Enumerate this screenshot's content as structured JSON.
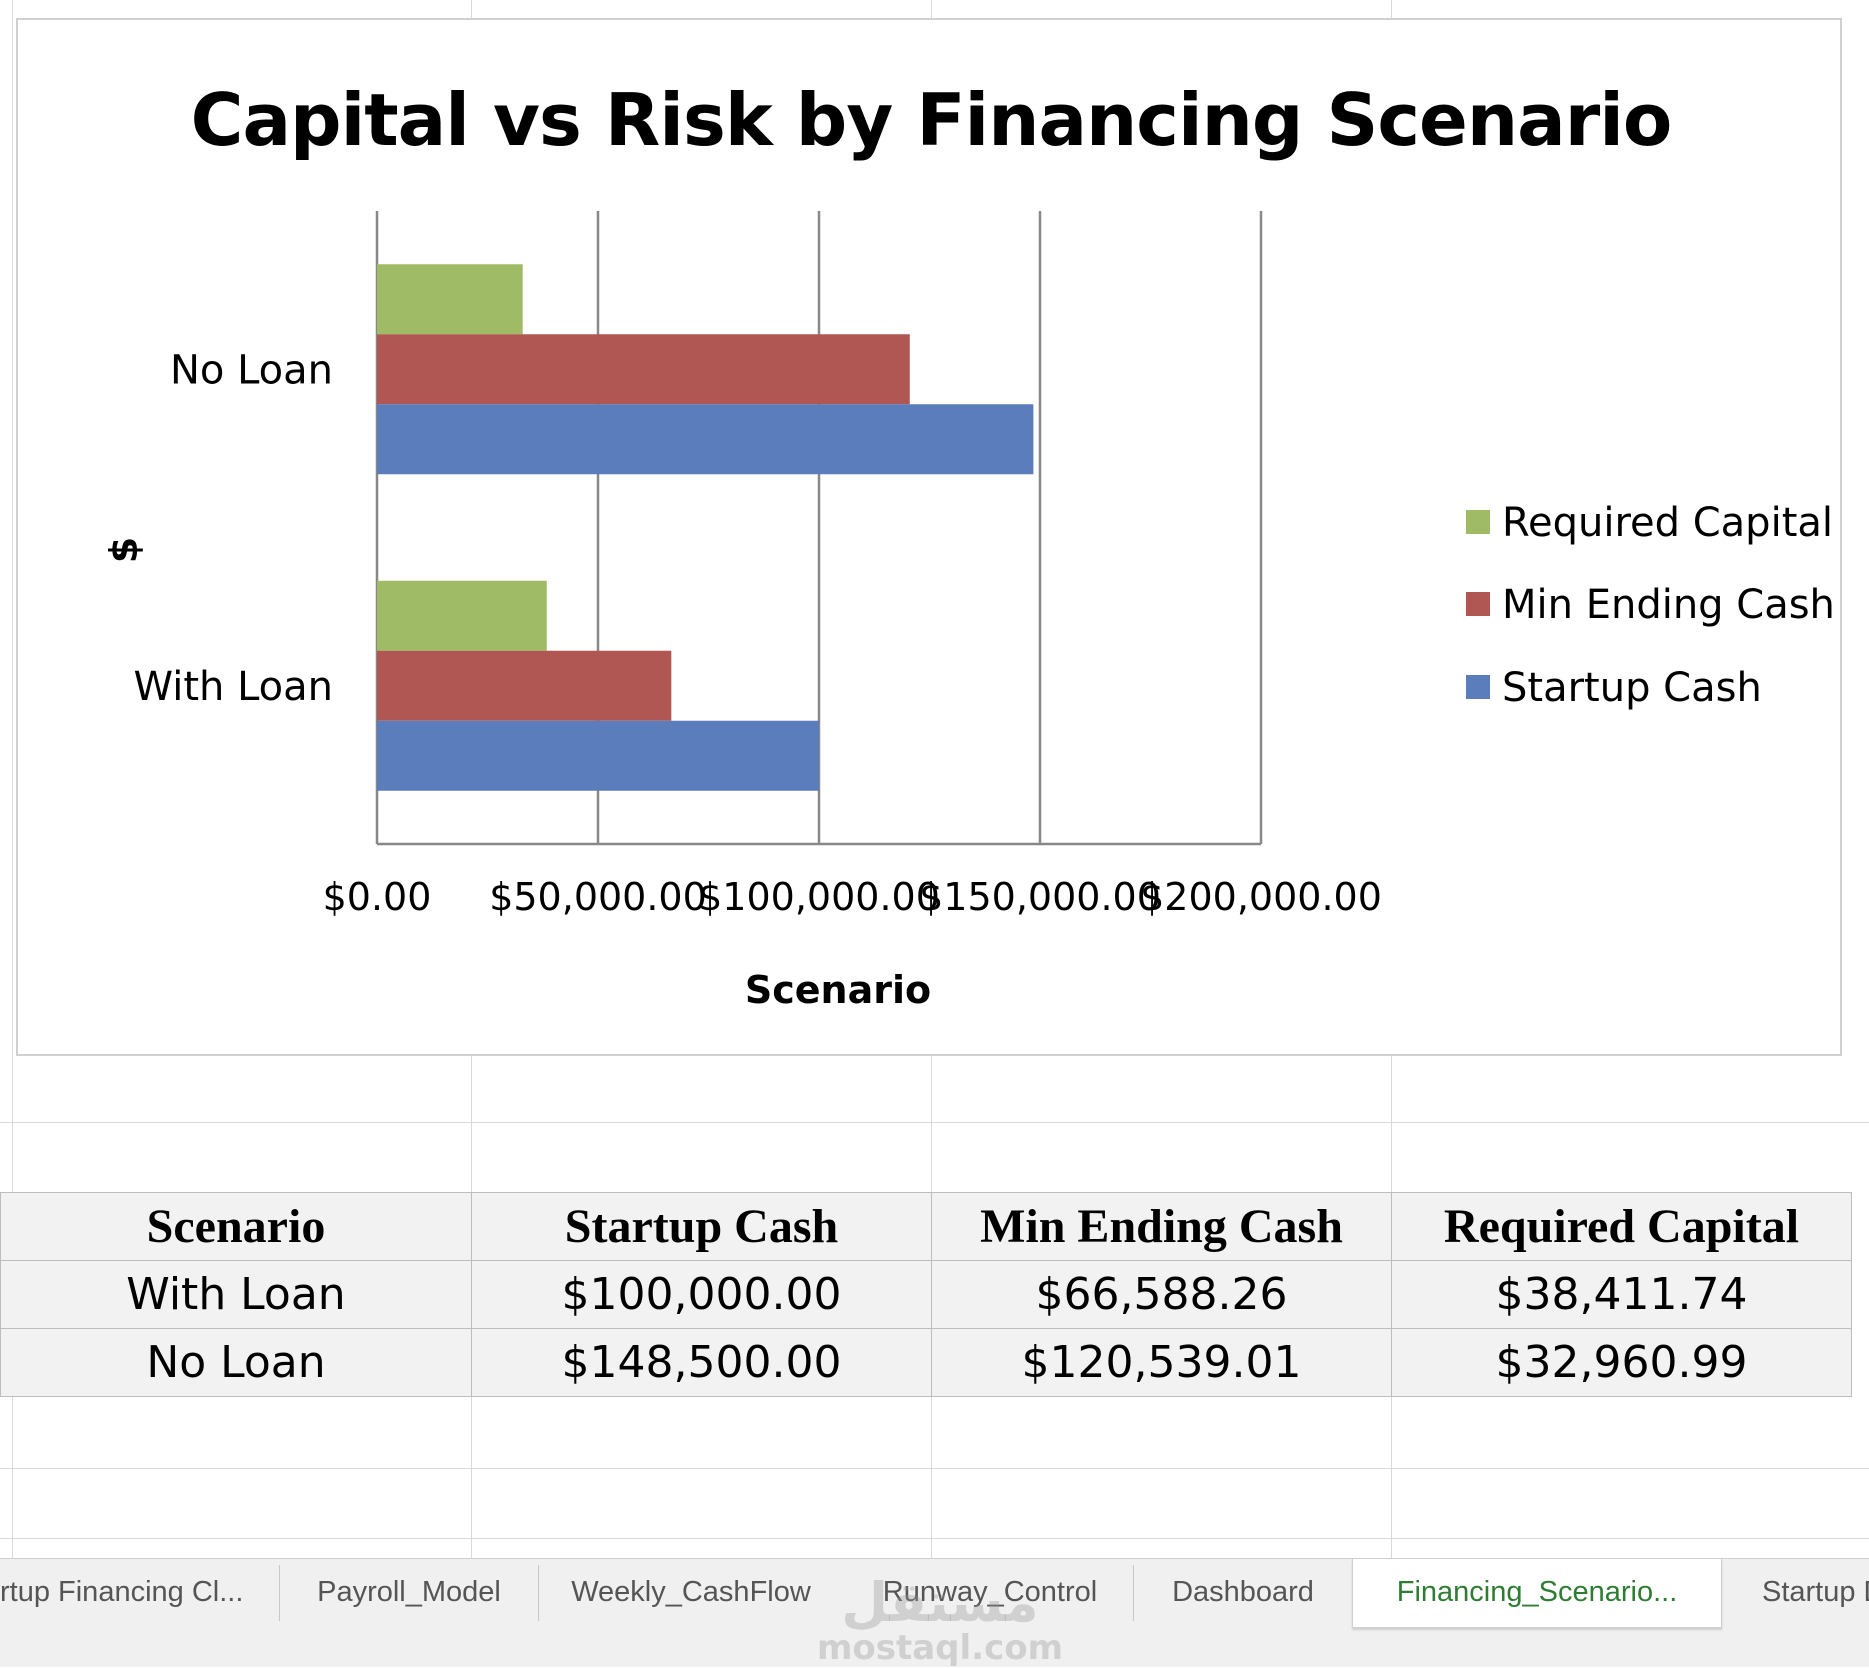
{
  "chart_data": {
    "type": "bar",
    "orientation": "horizontal",
    "title": "Capital vs Risk by Financing Scenario",
    "xlabel": "Scenario",
    "ylabel": "$",
    "categories": [
      "With Loan",
      "No Loan"
    ],
    "series": [
      {
        "name": "Startup Cash",
        "color": "#5b7dbb",
        "values": [
          100000.0,
          148500.0
        ]
      },
      {
        "name": "Min Ending Cash",
        "color": "#b05753",
        "values": [
          66588.26,
          120539.01
        ]
      },
      {
        "name": "Required Capital",
        "color": "#9fbb66",
        "values": [
          38411.74,
          32960.99
        ]
      }
    ],
    "legend_order": [
      "Required Capital",
      "Min Ending Cash",
      "Startup Cash"
    ],
    "xlim": [
      0,
      200000
    ],
    "x_ticks": [
      0,
      50000,
      100000,
      150000,
      200000
    ],
    "x_tick_labels": [
      "$0.00",
      "$50,000.00",
      "$100,000.00",
      "$150,000.00",
      "$200,000.00"
    ],
    "grid": true,
    "legend_position": "right"
  },
  "table": {
    "headers": [
      "Scenario",
      "Startup Cash",
      "Min Ending Cash",
      "Required Capital"
    ],
    "rows": [
      [
        "With Loan",
        "$100,000.00",
        "$66,588.26",
        "$38,411.74"
      ],
      [
        "No Loan",
        "$148,500.00",
        "$120,539.01",
        "$32,960.99"
      ]
    ]
  },
  "sheet_tabs": [
    {
      "label": "rtup Financing Cl...",
      "active": false
    },
    {
      "label": "Payroll_Model",
      "active": false
    },
    {
      "label": "Weekly_CashFlow",
      "active": false
    },
    {
      "label": "Runway_Control",
      "active": false
    },
    {
      "label": "Dashboard",
      "active": false
    },
    {
      "label": "Financing_Scenario...",
      "active": true
    },
    {
      "label": "Startup D",
      "active": false
    }
  ],
  "watermark": {
    "line1": "مستقل",
    "line2": "mostaql.com"
  },
  "colors": {
    "tab_active_text": "#2e7d32",
    "grid_line": "#d9d9d9",
    "axis_line": "#888888"
  }
}
